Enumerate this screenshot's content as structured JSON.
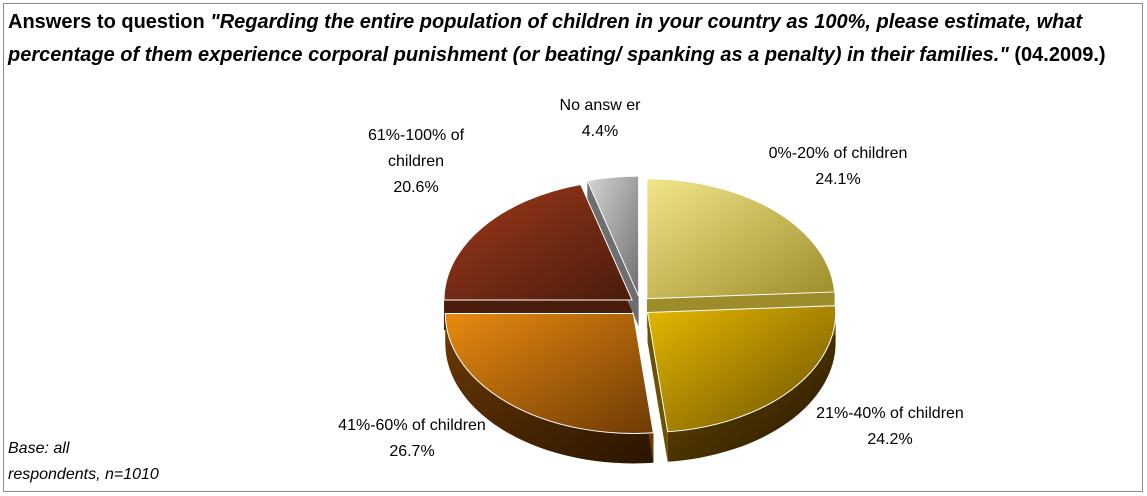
{
  "title": {
    "prefix": "Answers to question ",
    "question": "\"Regarding the entire population of children in your country as 100%, please estimate, what percentage of them experience corporal punishment (or beating/ spanking as a penalty) in their families.\"",
    "suffix": " (04.2009.)"
  },
  "footnote": {
    "line1": "Base: all",
    "line2": "respondents, n=1010"
  },
  "chart_data": {
    "type": "pie",
    "style": "3d-exploded",
    "title": "Answers to question \"Regarding the entire population of children in your country as 100%, please estimate, what percentage of them experience corporal punishment (or beating/ spanking as a penalty) in their families.\" (04.2009.)",
    "categories": [
      "0%-20% of children",
      "21%-40% of children",
      "41%-60% of children",
      "61%-100% of children",
      "No answer"
    ],
    "values": [
      24.1,
      24.2,
      26.7,
      20.6,
      4.4
    ],
    "value_labels": [
      "24.1%",
      "24.2%",
      "26.7%",
      "20.6%",
      "4.4%"
    ],
    "label_lines": [
      [
        "0%-20% of children",
        "24.1%"
      ],
      [
        "21%-40%  of children",
        "24.2%"
      ],
      [
        "41%-60%  of children",
        "26.7%"
      ],
      [
        "61%-100%  of",
        "children",
        "20.6%"
      ],
      [
        "No answ er",
        "4.4%"
      ]
    ],
    "colors": [
      "#f2e68a",
      "#e6b800",
      "#e88a10",
      "#a0391c",
      "#d4d4d4"
    ],
    "side_colors": [
      "#9c8c2a",
      "#6b5200",
      "#6e3a05",
      "#4a1c0c",
      "#6e6e6e"
    ],
    "legend": "none"
  }
}
